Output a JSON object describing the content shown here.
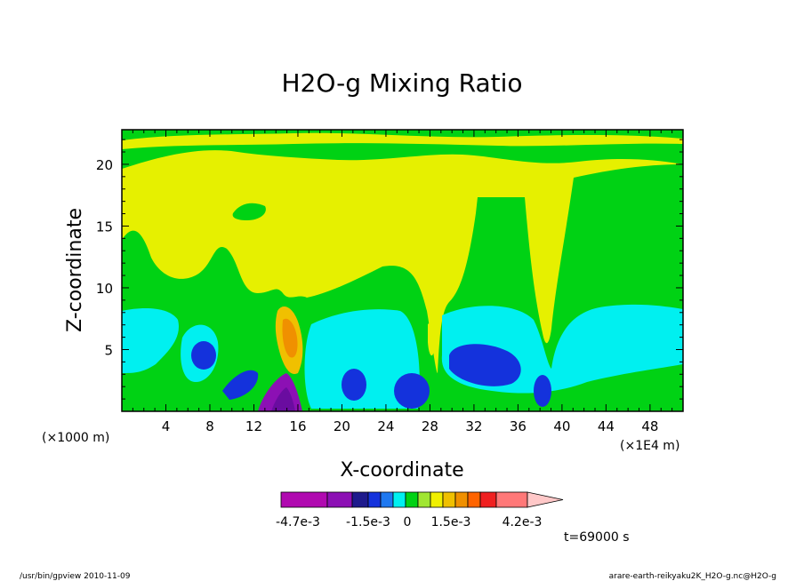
{
  "chart_data": {
    "type": "heatmap",
    "title": "H2O-g Mixing Ratio",
    "xlabel": "X-coordinate",
    "ylabel": "Z-coordinate",
    "x_unit": "(×1000 m)",
    "x_scale": "(×1E4 m)",
    "x_ticks": [
      "4",
      "8",
      "12",
      "16",
      "20",
      "24",
      "28",
      "32",
      "36",
      "40",
      "44",
      "48"
    ],
    "y_ticks": [
      "5",
      "10",
      "15",
      "20"
    ],
    "xlim": [
      0,
      51
    ],
    "ylim": [
      0,
      22.8
    ],
    "colorbar": {
      "labels": [
        "-4.7e-3",
        "-1.5e-3",
        "0",
        "1.5e-3",
        "4.2e-3"
      ],
      "colors": [
        "#b00ab0",
        "#8c10b4",
        "#1e1a8c",
        "#1432dc",
        "#1e78f0",
        "#00f0f0",
        "#00d214",
        "#a0e632",
        "#f0f000",
        "#f0c000",
        "#f09000",
        "#ff6400",
        "#f02020",
        "#ff7878",
        "#ffc8c8"
      ]
    },
    "regions": [
      {
        "level": "yellow",
        "color": "#e6f000",
        "shape": "background"
      },
      {
        "level": "green",
        "color": "#00d214",
        "desc": "upper band z~20-22.8"
      },
      {
        "level": "green",
        "color": "#00d214",
        "desc": "lower broad region z~0-14"
      },
      {
        "level": "cyan",
        "color": "#00f0f0",
        "desc": "z~1-8.5 multiple patches"
      },
      {
        "level": "blue",
        "color": "#1432dc",
        "desc": "cores near x=8,21,26,35,38"
      },
      {
        "level": "orange",
        "color": "#f09000",
        "desc": "plume near x=15, z~4-8"
      },
      {
        "level": "purple",
        "color": "#8c10b4",
        "desc": "core near x=15, z~0-3"
      }
    ]
  },
  "annotations": {
    "time_label": "t=69000 s",
    "footer_left": "/usr/bin/gpview  2010-11-09",
    "footer_right": "arare-earth-reikyaku2K_H2O-g.nc@H2O-g"
  }
}
